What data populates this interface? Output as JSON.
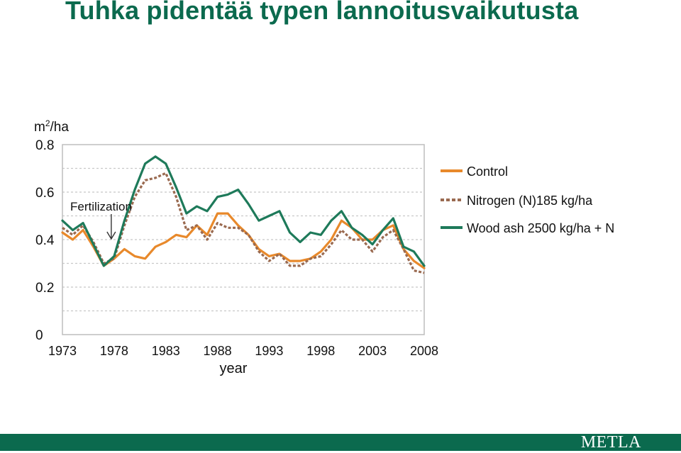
{
  "slide": {
    "title": "Tuhka pidentää typen lannoitusvaikutusta",
    "logo_text": "METLA"
  },
  "colors": {
    "brand_green": "#0b6a4e",
    "control": "#e8892b",
    "nitrogen": "#9a6a50",
    "wood_ash": "#1e7a5a"
  },
  "chart_data": {
    "type": "line",
    "title": "",
    "xlabel": "year",
    "ylabel": "m²/ha",
    "ylabel_base": "m",
    "ylabel_sup": "2",
    "ylabel_rest": "/ha",
    "xlim": [
      1973,
      2008
    ],
    "ylim": [
      0,
      0.8
    ],
    "x_ticks": [
      1973,
      1978,
      1983,
      1988,
      1993,
      1998,
      2003,
      2008
    ],
    "y_ticks": [
      0,
      0.2,
      0.4,
      0.6,
      0.8
    ],
    "y_tick_labels": [
      "0",
      "0.2",
      "0.4",
      "0.6",
      "0.8"
    ],
    "grid": true,
    "legend_position": "right",
    "annotation": {
      "text": "Fertilization",
      "x": 1978
    },
    "x": [
      1973,
      1974,
      1975,
      1976,
      1977,
      1978,
      1979,
      1980,
      1981,
      1982,
      1983,
      1984,
      1985,
      1986,
      1987,
      1988,
      1989,
      1990,
      1991,
      1992,
      1993,
      1994,
      1995,
      1996,
      1997,
      1998,
      1999,
      2000,
      2001,
      2002,
      2003,
      2004,
      2005,
      2006,
      2007,
      2008
    ],
    "series": [
      {
        "name": "Control",
        "style": "solid",
        "values": [
          0.43,
          0.4,
          0.44,
          0.37,
          0.29,
          0.32,
          0.36,
          0.33,
          0.32,
          0.37,
          0.39,
          0.42,
          0.41,
          0.46,
          0.42,
          0.51,
          0.51,
          0.46,
          0.42,
          0.36,
          0.33,
          0.34,
          0.31,
          0.31,
          0.32,
          0.35,
          0.4,
          0.48,
          0.45,
          0.4,
          0.4,
          0.44,
          0.46,
          0.36,
          0.31,
          0.28
        ]
      },
      {
        "name": "Nitrogen (N)185 kg/ha",
        "style": "dashed",
        "values": [
          0.45,
          0.42,
          0.46,
          0.39,
          0.3,
          0.32,
          0.46,
          0.58,
          0.65,
          0.66,
          0.68,
          0.58,
          0.44,
          0.46,
          0.4,
          0.47,
          0.45,
          0.45,
          0.42,
          0.35,
          0.31,
          0.34,
          0.29,
          0.29,
          0.32,
          0.33,
          0.38,
          0.44,
          0.4,
          0.4,
          0.35,
          0.41,
          0.44,
          0.36,
          0.27,
          0.26
        ]
      },
      {
        "name": "Wood ash 2500 kg/ha + N",
        "style": "solid",
        "values": [
          0.48,
          0.44,
          0.47,
          0.38,
          0.29,
          0.33,
          0.48,
          0.61,
          0.72,
          0.75,
          0.72,
          0.62,
          0.51,
          0.54,
          0.52,
          0.58,
          0.59,
          0.61,
          0.55,
          0.48,
          0.5,
          0.52,
          0.43,
          0.39,
          0.43,
          0.42,
          0.48,
          0.52,
          0.45,
          0.42,
          0.38,
          0.44,
          0.49,
          0.37,
          0.35,
          0.29
        ]
      }
    ]
  }
}
